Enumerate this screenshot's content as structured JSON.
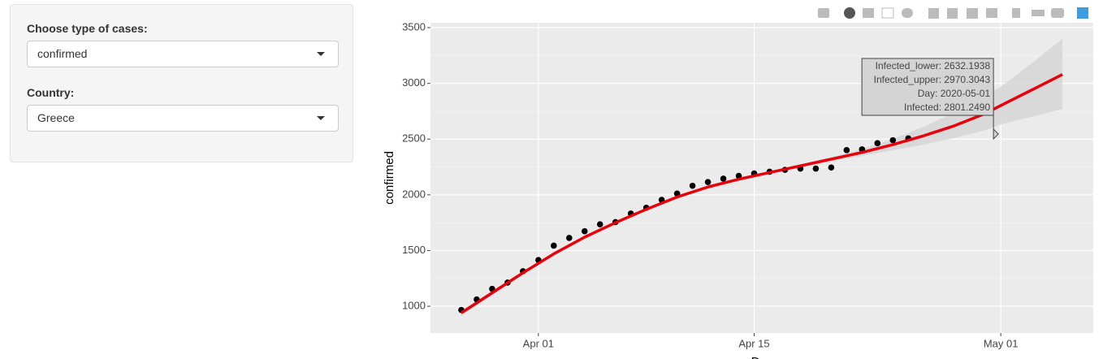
{
  "sidebar": {
    "case_label": "Choose type of cases:",
    "case_value": "confirmed",
    "country_label": "Country:",
    "country_value": "Greece"
  },
  "chart_data": {
    "type": "scatter",
    "x_label": "Day",
    "y_label": "confirmed",
    "xlim": [
      "2020-03-25",
      "2020-05-07"
    ],
    "ylim": [
      760,
      3544
    ],
    "xticks": [
      {
        "value": "2020-04-01",
        "label": "Apr 01"
      },
      {
        "value": "2020-04-15",
        "label": "Apr 15"
      },
      {
        "value": "2020-05-01",
        "label": "May 01"
      }
    ],
    "yticks": [
      1000,
      1500,
      2000,
      2500,
      3000,
      3500
    ],
    "grid": true,
    "points": {
      "color": "#000000",
      "x": [
        "2020-03-27",
        "2020-03-28",
        "2020-03-29",
        "2020-03-30",
        "2020-03-31",
        "2020-04-01",
        "2020-04-02",
        "2020-04-03",
        "2020-04-04",
        "2020-04-05",
        "2020-04-06",
        "2020-04-07",
        "2020-04-08",
        "2020-04-09",
        "2020-04-10",
        "2020-04-11",
        "2020-04-12",
        "2020-04-13",
        "2020-04-14",
        "2020-04-15",
        "2020-04-16",
        "2020-04-17",
        "2020-04-18",
        "2020-04-19",
        "2020-04-20",
        "2020-04-21",
        "2020-04-22",
        "2020-04-23",
        "2020-04-24",
        "2020-04-25"
      ],
      "values": [
        966,
        1061,
        1156,
        1212,
        1314,
        1415,
        1544,
        1613,
        1673,
        1735,
        1755,
        1832,
        1884,
        1955,
        2011,
        2081,
        2114,
        2145,
        2170,
        2192,
        2207,
        2224,
        2235,
        2235,
        2245,
        2401,
        2408,
        2463,
        2490,
        2506
      ]
    },
    "fit": {
      "color": "#e8000b",
      "band_color": "#d4d4d4",
      "x": [
        "2020-03-27",
        "2020-03-29",
        "2020-03-31",
        "2020-04-02",
        "2020-04-04",
        "2020-04-06",
        "2020-04-08",
        "2020-04-10",
        "2020-04-12",
        "2020-04-14",
        "2020-04-16",
        "2020-04-18",
        "2020-04-20",
        "2020-04-22",
        "2020-04-24",
        "2020-04-26",
        "2020-04-28",
        "2020-04-30",
        "2020-05-01",
        "2020-05-03",
        "2020-05-05"
      ],
      "values": [
        940,
        1120,
        1300,
        1470,
        1620,
        1750,
        1870,
        1980,
        2070,
        2140,
        2200,
        2260,
        2320,
        2380,
        2450,
        2530,
        2620,
        2730,
        2801.249,
        2940,
        3080
      ],
      "lower": [
        915,
        1100,
        1285,
        1458,
        1610,
        1741,
        1862,
        1972,
        2062,
        2132,
        2190,
        2246,
        2300,
        2350,
        2400,
        2450,
        2510,
        2580,
        2632.1938,
        2700,
        2770
      ],
      "upper": [
        965,
        1140,
        1315,
        1482,
        1630,
        1759,
        1878,
        1988,
        2078,
        2148,
        2210,
        2274,
        2340,
        2410,
        2500,
        2610,
        2740,
        2890,
        2970.3043,
        3180,
        3400
      ]
    },
    "tooltip": {
      "x": "2020-05-01",
      "lines": [
        "Infected_lower: 2632.1938",
        "Infected_upper: 2970.3043",
        "Day: 2020-05-01",
        "Infected: 2801.2490"
      ]
    }
  }
}
